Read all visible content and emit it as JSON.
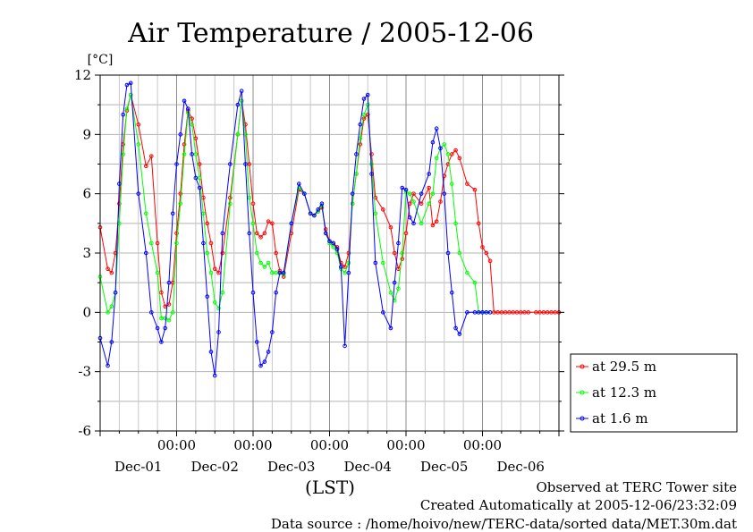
{
  "chart_data": {
    "type": "line",
    "title": "Air Temperature / 2005-12-06",
    "ylabel": "[°C]",
    "xlabel": "(LST)",
    "ylim": [
      -6,
      12
    ],
    "yticks": [
      -6,
      -3,
      0,
      3,
      6,
      9,
      12
    ],
    "xlim": [
      0,
      6
    ],
    "xticks": [
      {
        "x": 1,
        "top": "00:00",
        "bottom": "Dec-01"
      },
      {
        "x": 2,
        "top": "00:00",
        "bottom": "Dec-02"
      },
      {
        "x": 3,
        "top": "00:00",
        "bottom": "Dec-03"
      },
      {
        "x": 4,
        "top": "00:00",
        "bottom": "Dec-04"
      },
      {
        "x": 5,
        "top": "00:00",
        "bottom": "Dec-05"
      },
      {
        "x": 6,
        "top": "",
        "bottom": "Dec-06"
      }
    ],
    "grid": true,
    "legend_position": "right",
    "series": [
      {
        "name": "at 29.5 m",
        "color": "#ff0000",
        "x": [
          0.0,
          0.1,
          0.15,
          0.2,
          0.25,
          0.3,
          0.35,
          0.4,
          0.5,
          0.6,
          0.67,
          0.75,
          0.8,
          0.85,
          0.9,
          0.95,
          1.0,
          1.05,
          1.1,
          1.15,
          1.2,
          1.25,
          1.3,
          1.35,
          1.4,
          1.45,
          1.5,
          1.55,
          1.6,
          1.7,
          1.8,
          1.85,
          1.9,
          1.95,
          2.0,
          2.05,
          2.1,
          2.15,
          2.2,
          2.25,
          2.3,
          2.35,
          2.4,
          2.5,
          2.6,
          2.67,
          2.75,
          2.8,
          2.85,
          2.9,
          2.95,
          3.0,
          3.05,
          3.1,
          3.15,
          3.2,
          3.25,
          3.3,
          3.35,
          3.4,
          3.45,
          3.5,
          3.55,
          3.6,
          3.7,
          3.8,
          3.85,
          3.9,
          3.95,
          4.0,
          4.05,
          4.1,
          4.2,
          4.3,
          4.35,
          4.4,
          4.45,
          4.5,
          4.55,
          4.6,
          4.65,
          4.7,
          4.8,
          4.9,
          4.95,
          5.0,
          5.05,
          5.1,
          5.15,
          5.2,
          5.25,
          5.3,
          5.35,
          5.4,
          5.45,
          5.5,
          5.55,
          5.6,
          5.7,
          5.75,
          5.8,
          5.85,
          5.9,
          5.95,
          6.0
        ],
        "y": [
          4.3,
          2.2,
          2.0,
          3.0,
          5.5,
          8.5,
          10.2,
          11.0,
          9.5,
          7.4,
          7.9,
          3.5,
          1.0,
          0.3,
          0.4,
          1.5,
          4.0,
          6.0,
          8.5,
          10.2,
          9.8,
          8.8,
          7.5,
          5.8,
          4.5,
          3.5,
          2.2,
          2.0,
          3.0,
          5.8,
          9.0,
          10.7,
          9.5,
          7.5,
          5.5,
          4.0,
          3.8,
          4.0,
          4.6,
          4.5,
          3.0,
          2.1,
          1.8,
          4.0,
          6.2,
          6.0,
          5.0,
          4.9,
          5.1,
          5.3,
          4.2,
          3.6,
          3.5,
          3.3,
          2.5,
          2.3,
          3.0,
          5.5,
          7.0,
          8.5,
          9.8,
          10.0,
          8.0,
          5.8,
          5.2,
          4.3,
          3.0,
          2.2,
          2.7,
          4.0,
          5.5,
          6.0,
          5.5,
          6.3,
          4.4,
          4.6,
          5.6,
          6.9,
          7.5,
          8.0,
          8.2,
          7.8,
          6.5,
          6.2,
          4.5,
          3.3,
          3.0,
          2.6,
          0.0,
          0,
          0,
          0,
          0,
          0,
          0,
          0,
          0,
          0,
          0,
          0,
          0,
          0,
          0,
          0,
          0
        ]
      },
      {
        "name": "at 12.3 m",
        "color": "#00ff00",
        "x": [
          0.0,
          0.1,
          0.15,
          0.2,
          0.25,
          0.3,
          0.35,
          0.4,
          0.5,
          0.6,
          0.67,
          0.75,
          0.8,
          0.85,
          0.9,
          0.95,
          1.0,
          1.05,
          1.1,
          1.15,
          1.2,
          1.25,
          1.3,
          1.35,
          1.4,
          1.45,
          1.5,
          1.55,
          1.6,
          1.7,
          1.8,
          1.85,
          1.9,
          1.95,
          2.0,
          2.05,
          2.1,
          2.15,
          2.2,
          2.25,
          2.3,
          2.35,
          2.4,
          2.5,
          2.6,
          2.67,
          2.75,
          2.8,
          2.85,
          2.9,
          2.95,
          3.0,
          3.05,
          3.1,
          3.15,
          3.2,
          3.25,
          3.3,
          3.35,
          3.4,
          3.45,
          3.5,
          3.55,
          3.6,
          3.7,
          3.8,
          3.85,
          3.9,
          3.95,
          4.0,
          4.05,
          4.1,
          4.2,
          4.3,
          4.35,
          4.4,
          4.45,
          4.5,
          4.55,
          4.6,
          4.65,
          4.7,
          4.8,
          4.9,
          4.95,
          5.0,
          5.05,
          5.1
        ],
        "y": [
          1.8,
          0.0,
          0.3,
          1.0,
          4.5,
          8.0,
          10.3,
          11.0,
          8.5,
          5.0,
          3.5,
          2.0,
          -0.3,
          -0.3,
          -0.4,
          0.0,
          3.5,
          5.5,
          8.0,
          10.1,
          9.5,
          8.0,
          6.8,
          5.0,
          3.0,
          2.0,
          0.5,
          0.2,
          1.0,
          5.5,
          9.0,
          10.7,
          9.0,
          5.8,
          4.5,
          3.0,
          2.5,
          2.3,
          2.5,
          2.0,
          2.0,
          2.0,
          1.9,
          4.5,
          6.3,
          6.0,
          5.0,
          4.9,
          5.1,
          5.4,
          4.0,
          3.5,
          3.3,
          3.0,
          2.2,
          2.0,
          2.5,
          5.5,
          7.0,
          8.8,
          10.0,
          10.5,
          7.5,
          5.0,
          2.5,
          1.0,
          0.6,
          1.2,
          3.0,
          6.1,
          6.0,
          5.6,
          4.5,
          5.5,
          6.0,
          7.8,
          8.3,
          8.5,
          8.0,
          6.5,
          4.5,
          3.0,
          2.0,
          1.5,
          0,
          0,
          0,
          0
        ]
      },
      {
        "name": "at 1.6 m",
        "color": "#0000ff",
        "x": [
          0.0,
          0.1,
          0.15,
          0.2,
          0.25,
          0.3,
          0.35,
          0.4,
          0.5,
          0.6,
          0.67,
          0.75,
          0.8,
          0.85,
          0.9,
          0.95,
          1.0,
          1.05,
          1.1,
          1.15,
          1.2,
          1.25,
          1.3,
          1.35,
          1.4,
          1.45,
          1.5,
          1.55,
          1.6,
          1.7,
          1.8,
          1.85,
          1.9,
          1.95,
          2.0,
          2.05,
          2.1,
          2.15,
          2.2,
          2.25,
          2.3,
          2.35,
          2.4,
          2.5,
          2.6,
          2.67,
          2.75,
          2.8,
          2.85,
          2.9,
          2.95,
          3.0,
          3.05,
          3.1,
          3.15,
          3.2,
          3.25,
          3.3,
          3.35,
          3.4,
          3.45,
          3.5,
          3.55,
          3.6,
          3.7,
          3.8,
          3.85,
          3.9,
          3.95,
          4.0,
          4.05,
          4.1,
          4.2,
          4.3,
          4.35,
          4.4,
          4.45,
          4.5,
          4.55,
          4.6,
          4.65,
          4.7,
          4.8,
          4.9,
          4.95,
          5.0,
          5.05,
          5.1
        ],
        "y": [
          -1.3,
          -2.7,
          -1.5,
          1.0,
          6.5,
          10.0,
          11.5,
          11.6,
          6.0,
          3.0,
          0.0,
          -0.8,
          -1.5,
          -0.8,
          1.5,
          5.0,
          7.5,
          9.0,
          10.7,
          10.3,
          8.0,
          6.8,
          6.3,
          3.5,
          0.8,
          -2.0,
          -3.2,
          -1.0,
          4.0,
          7.5,
          10.5,
          11.2,
          7.5,
          4.0,
          1.0,
          -1.5,
          -2.7,
          -2.5,
          -2.0,
          -1.0,
          1.0,
          2.0,
          2.0,
          4.5,
          6.5,
          6.0,
          5.0,
          4.9,
          5.2,
          5.5,
          4.0,
          3.6,
          3.5,
          3.2,
          2.3,
          -1.7,
          2.0,
          6.0,
          8.0,
          9.5,
          10.8,
          11.0,
          7.0,
          2.5,
          0.0,
          -0.8,
          1.5,
          3.5,
          6.3,
          6.2,
          4.8,
          4.5,
          6.0,
          7.0,
          8.6,
          9.3,
          8.3,
          6.0,
          3.0,
          1.0,
          -0.8,
          -1.1,
          0,
          0,
          0,
          0,
          0,
          0
        ]
      }
    ]
  },
  "footer": {
    "line1": "Observed at TERC Tower site",
    "line2": "Created Automatically at 2005-12-06/23:32:09",
    "line3": "Data source : /home/hoivo/new/TERC-data/sorted  data/MET.30m.dat"
  }
}
